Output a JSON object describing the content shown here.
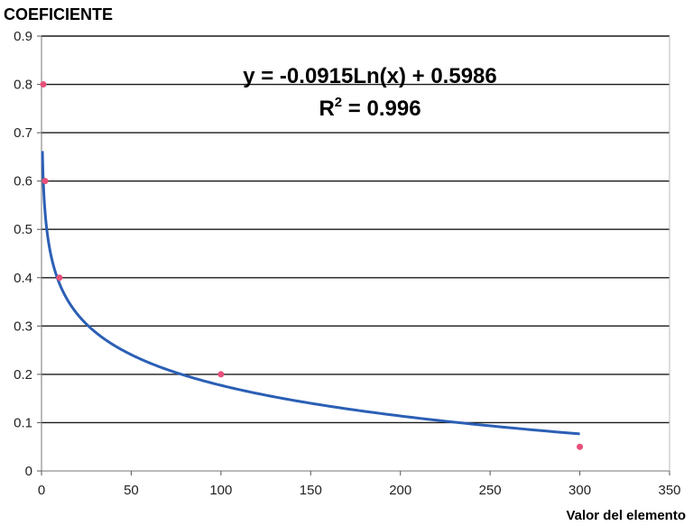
{
  "chart_data": {
    "type": "scatter",
    "ylabel": "COEFICIENTE",
    "xlabel": "Valor del elemento",
    "xlim": [
      0,
      350
    ],
    "ylim": [
      0,
      0.9
    ],
    "xticks": [
      0,
      50,
      100,
      150,
      200,
      250,
      300,
      350
    ],
    "yticks": [
      0,
      0.1,
      0.2,
      0.3,
      0.4,
      0.5,
      0.6,
      0.7,
      0.8,
      0.9
    ],
    "xtick_labels": [
      "0",
      "50",
      "100",
      "150",
      "200",
      "250",
      "300",
      "350"
    ],
    "ytick_labels": [
      "0",
      "0.1",
      "0.2",
      "0.3",
      "0.4",
      "0.5",
      "0.6",
      "0.7",
      "0.8",
      "0.9"
    ],
    "grid": "horizontal",
    "series": [
      {
        "type": "scatter",
        "x": [
          1,
          2,
          10,
          100,
          300
        ],
        "y": [
          0.8,
          0.6,
          0.4,
          0.2,
          0.05
        ],
        "color": "#e8507a"
      }
    ],
    "trendline": {
      "type": "logarithmic",
      "a": -0.0915,
      "b": 0.5986,
      "x_range": [
        0.5,
        300
      ],
      "color": "#2b5fb5"
    },
    "annotations": {
      "equation": "y = -0.0915Ln(x) + 0.5986",
      "r2_prefix": "R",
      "r2_sup": "2",
      "r2_suffix": " = 0.996"
    }
  }
}
